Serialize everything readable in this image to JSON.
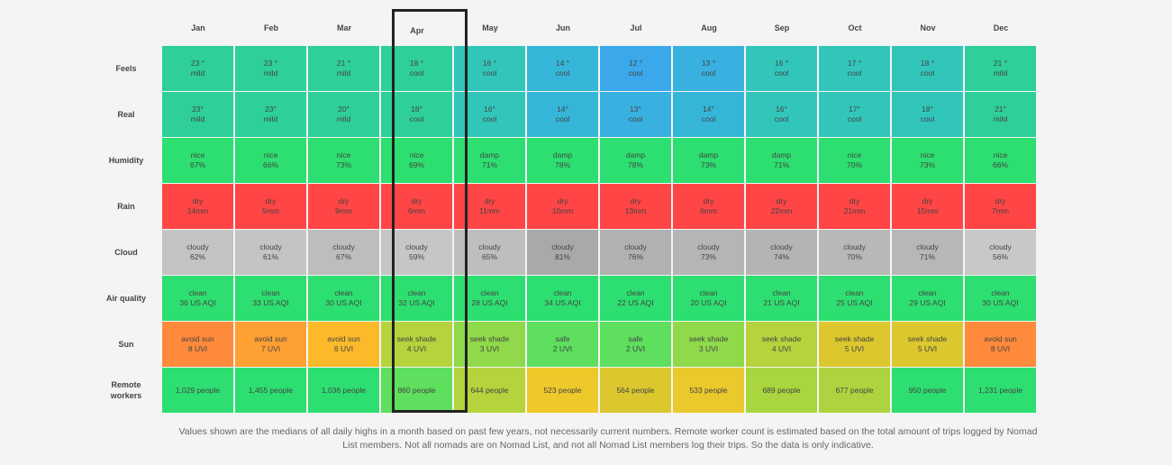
{
  "months": [
    "Jan",
    "Feb",
    "Mar",
    "Apr",
    "May",
    "Jun",
    "Jul",
    "Aug",
    "Sep",
    "Oct",
    "Nov",
    "Dec"
  ],
  "highlighted_month": "Apr",
  "rows": [
    {
      "label": "Feels",
      "cells": [
        {
          "l1": "23 °",
          "l2": "mild",
          "color": "#2ecf9a"
        },
        {
          "l1": "23 °",
          "l2": "mild",
          "color": "#2ecf9a"
        },
        {
          "l1": "21 °",
          "l2": "mild",
          "color": "#2ecf9a"
        },
        {
          "l1": "18 °",
          "l2": "cool",
          "color": "#2ecf9a"
        },
        {
          "l1": "16 °",
          "l2": "cool",
          "color": "#32c6bb"
        },
        {
          "l1": "14 °",
          "l2": "cool",
          "color": "#35b6d9"
        },
        {
          "l1": "12 °",
          "l2": "cool",
          "color": "#3aa8ea"
        },
        {
          "l1": "13 °",
          "l2": "cool",
          "color": "#38b0e0"
        },
        {
          "l1": "16 °",
          "l2": "cool",
          "color": "#32c6bb"
        },
        {
          "l1": "17 °",
          "l2": "cool",
          "color": "#32c6bb"
        },
        {
          "l1": "18 °",
          "l2": "cool",
          "color": "#32c6bb"
        },
        {
          "l1": "21 °",
          "l2": "mild",
          "color": "#2ecf9a"
        }
      ]
    },
    {
      "label": "Real",
      "cells": [
        {
          "l1": "23°",
          "l2": "mild",
          "color": "#2ecf9a"
        },
        {
          "l1": "23°",
          "l2": "mild",
          "color": "#2ecf9a"
        },
        {
          "l1": "20°",
          "l2": "mild",
          "color": "#2ecf9a"
        },
        {
          "l1": "18°",
          "l2": "cool",
          "color": "#2ecf9a"
        },
        {
          "l1": "16°",
          "l2": "cool",
          "color": "#32c6bb"
        },
        {
          "l1": "14°",
          "l2": "cool",
          "color": "#35b6d9"
        },
        {
          "l1": "13°",
          "l2": "cool",
          "color": "#38b0e0"
        },
        {
          "l1": "14°",
          "l2": "cool",
          "color": "#35b6d9"
        },
        {
          "l1": "16°",
          "l2": "cool",
          "color": "#32c6bb"
        },
        {
          "l1": "17°",
          "l2": "cool",
          "color": "#32c6bb"
        },
        {
          "l1": "18°",
          "l2": "cool",
          "color": "#32c6bb"
        },
        {
          "l1": "21°",
          "l2": "mild",
          "color": "#2ecf9a"
        }
      ]
    },
    {
      "label": "Humidity",
      "cells": [
        {
          "l1": "nice",
          "l2": "67%",
          "color": "#2ddf70"
        },
        {
          "l1": "nice",
          "l2": "66%",
          "color": "#2ddf70"
        },
        {
          "l1": "nice",
          "l2": "73%",
          "color": "#2ddf70"
        },
        {
          "l1": "nice",
          "l2": "69%",
          "color": "#2ddf70"
        },
        {
          "l1": "damp",
          "l2": "71%",
          "color": "#2ddf70"
        },
        {
          "l1": "damp",
          "l2": "78%",
          "color": "#2ddf70"
        },
        {
          "l1": "damp",
          "l2": "78%",
          "color": "#2ddf70"
        },
        {
          "l1": "damp",
          "l2": "73%",
          "color": "#2ddf70"
        },
        {
          "l1": "damp",
          "l2": "71%",
          "color": "#2ddf70"
        },
        {
          "l1": "nice",
          "l2": "70%",
          "color": "#2ddf70"
        },
        {
          "l1": "nice",
          "l2": "73%",
          "color": "#2ddf70"
        },
        {
          "l1": "nice",
          "l2": "66%",
          "color": "#2ddf70"
        }
      ]
    },
    {
      "label": "Rain",
      "cells": [
        {
          "l1": "dry",
          "l2": "14mm",
          "color": "#ff4545"
        },
        {
          "l1": "dry",
          "l2": "5mm",
          "color": "#ff4545"
        },
        {
          "l1": "dry",
          "l2": "9mm",
          "color": "#ff4545"
        },
        {
          "l1": "dry",
          "l2": "6mm",
          "color": "#ff4545"
        },
        {
          "l1": "dry",
          "l2": "11mm",
          "color": "#ff4545"
        },
        {
          "l1": "dry",
          "l2": "10mm",
          "color": "#ff4545"
        },
        {
          "l1": "dry",
          "l2": "13mm",
          "color": "#ff4545"
        },
        {
          "l1": "dry",
          "l2": "6mm",
          "color": "#ff4545"
        },
        {
          "l1": "dry",
          "l2": "22mm",
          "color": "#ff4545"
        },
        {
          "l1": "dry",
          "l2": "21mm",
          "color": "#ff4545"
        },
        {
          "l1": "dry",
          "l2": "15mm",
          "color": "#ff4545"
        },
        {
          "l1": "dry",
          "l2": "7mm",
          "color": "#ff4545"
        }
      ]
    },
    {
      "label": "Cloud",
      "cells": [
        {
          "l1": "cloudy",
          "l2": "62%",
          "color": "#c4c4c4"
        },
        {
          "l1": "cloudy",
          "l2": "61%",
          "color": "#c4c4c4"
        },
        {
          "l1": "cloudy",
          "l2": "67%",
          "color": "#bdbdbd"
        },
        {
          "l1": "cloudy",
          "l2": "59%",
          "color": "#c6c6c6"
        },
        {
          "l1": "cloudy",
          "l2": "65%",
          "color": "#bebebe"
        },
        {
          "l1": "cloudy",
          "l2": "81%",
          "color": "#a9a9a9"
        },
        {
          "l1": "cloudy",
          "l2": "76%",
          "color": "#b1b1b1"
        },
        {
          "l1": "cloudy",
          "l2": "73%",
          "color": "#b5b5b5"
        },
        {
          "l1": "cloudy",
          "l2": "74%",
          "color": "#b4b4b4"
        },
        {
          "l1": "cloudy",
          "l2": "70%",
          "color": "#b8b8b8"
        },
        {
          "l1": "cloudy",
          "l2": "71%",
          "color": "#b7b7b7"
        },
        {
          "l1": "cloudy",
          "l2": "56%",
          "color": "#c8c8c8"
        }
      ]
    },
    {
      "label": "Air quality",
      "cells": [
        {
          "l1": "clean",
          "l2": "36 US AQI",
          "color": "#2ddf70"
        },
        {
          "l1": "clean",
          "l2": "33 US AQI",
          "color": "#2ddf70"
        },
        {
          "l1": "clean",
          "l2": "30 US AQI",
          "color": "#2ddf70"
        },
        {
          "l1": "clean",
          "l2": "32 US AQI",
          "color": "#2ddf70"
        },
        {
          "l1": "clean",
          "l2": "28 US AQI",
          "color": "#2ddf70"
        },
        {
          "l1": "clean",
          "l2": "34 US AQI",
          "color": "#2ddf70"
        },
        {
          "l1": "clean",
          "l2": "22 US AQI",
          "color": "#2ddf70"
        },
        {
          "l1": "clean",
          "l2": "20 US AQI",
          "color": "#2ddf70"
        },
        {
          "l1": "clean",
          "l2": "21 US AQI",
          "color": "#2ddf70"
        },
        {
          "l1": "clean",
          "l2": "25 US AQI",
          "color": "#2ddf70"
        },
        {
          "l1": "clean",
          "l2": "29 US AQI",
          "color": "#2ddf70"
        },
        {
          "l1": "clean",
          "l2": "30 US AQI",
          "color": "#2ddf70"
        }
      ]
    },
    {
      "label": "Sun",
      "cells": [
        {
          "l1": "avoid sun",
          "l2": "8 UVI",
          "color": "#ff8a3c"
        },
        {
          "l1": "avoid sun",
          "l2": "7 UVI",
          "color": "#ffa032"
        },
        {
          "l1": "avoid sun",
          "l2": "6 UVI",
          "color": "#fcb92a"
        },
        {
          "l1": "seek shade",
          "l2": "4 UVI",
          "color": "#b5d33c"
        },
        {
          "l1": "seek shade",
          "l2": "3 UVI",
          "color": "#8fd94a"
        },
        {
          "l1": "safe",
          "l2": "2 UVI",
          "color": "#5edf5e"
        },
        {
          "l1": "safe",
          "l2": "2 UVI",
          "color": "#5edf5e"
        },
        {
          "l1": "seek shade",
          "l2": "3 UVI",
          "color": "#8fd94a"
        },
        {
          "l1": "seek shade",
          "l2": "4 UVI",
          "color": "#b5d33c"
        },
        {
          "l1": "seek shade",
          "l2": "5 UVI",
          "color": "#dcc82e"
        },
        {
          "l1": "seek shade",
          "l2": "5 UVI",
          "color": "#dcc82e"
        },
        {
          "l1": "avoid sun",
          "l2": "8 UVI",
          "color": "#ff8a3c"
        }
      ]
    },
    {
      "label": "Remote workers",
      "cells": [
        {
          "l1": "1,029 people",
          "l2": "",
          "color": "#2ddf70"
        },
        {
          "l1": "1,455 people",
          "l2": "",
          "color": "#2ddf70"
        },
        {
          "l1": "1,036 people",
          "l2": "",
          "color": "#2ddf70"
        },
        {
          "l1": "860 people",
          "l2": "",
          "color": "#5edf5e"
        },
        {
          "l1": "644 people",
          "l2": "",
          "color": "#b5d33c"
        },
        {
          "l1": "523 people",
          "l2": "",
          "color": "#eec92a"
        },
        {
          "l1": "564 people",
          "l2": "",
          "color": "#dcc82e"
        },
        {
          "l1": "533 people",
          "l2": "",
          "color": "#eac92c"
        },
        {
          "l1": "689 people",
          "l2": "",
          "color": "#a9d53e"
        },
        {
          "l1": "677 people",
          "l2": "",
          "color": "#add43e"
        },
        {
          "l1": "950 people",
          "l2": "",
          "color": "#2ddf70"
        },
        {
          "l1": "1,231 people",
          "l2": "",
          "color": "#2ddf70"
        }
      ]
    }
  ],
  "footnote": "Values shown are the medians of all daily highs in a month based on past few years, not necessarily current numbers. Remote worker count is estimated based on the total amount of trips logged by Nomad List members. Not all nomads are on Nomad List, and not all Nomad List members log their trips. So the data is only indicative."
}
